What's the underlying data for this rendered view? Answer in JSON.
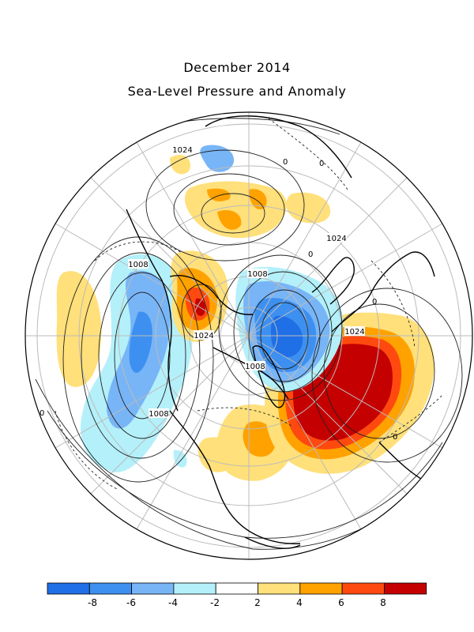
{
  "title": "December 2014",
  "subtitle": "Sea-Level Pressure and Anomaly",
  "contour_labels": [
    "1024",
    "1024",
    "1024",
    "1024",
    "1008",
    "1008",
    "1008",
    "1008",
    "0",
    "0",
    "0",
    "0",
    "0",
    "0"
  ],
  "legend": {
    "colors": [
      "#1f6fe6",
      "#3d90f0",
      "#78b5f7",
      "#b4f0fa",
      "#ffffff",
      "#ffe07a",
      "#ffa200",
      "#ff4a0f",
      "#c40000"
    ],
    "ticks": [
      "-8",
      "-6",
      "-4",
      "-2",
      "2",
      "4",
      "6",
      "8"
    ]
  }
}
